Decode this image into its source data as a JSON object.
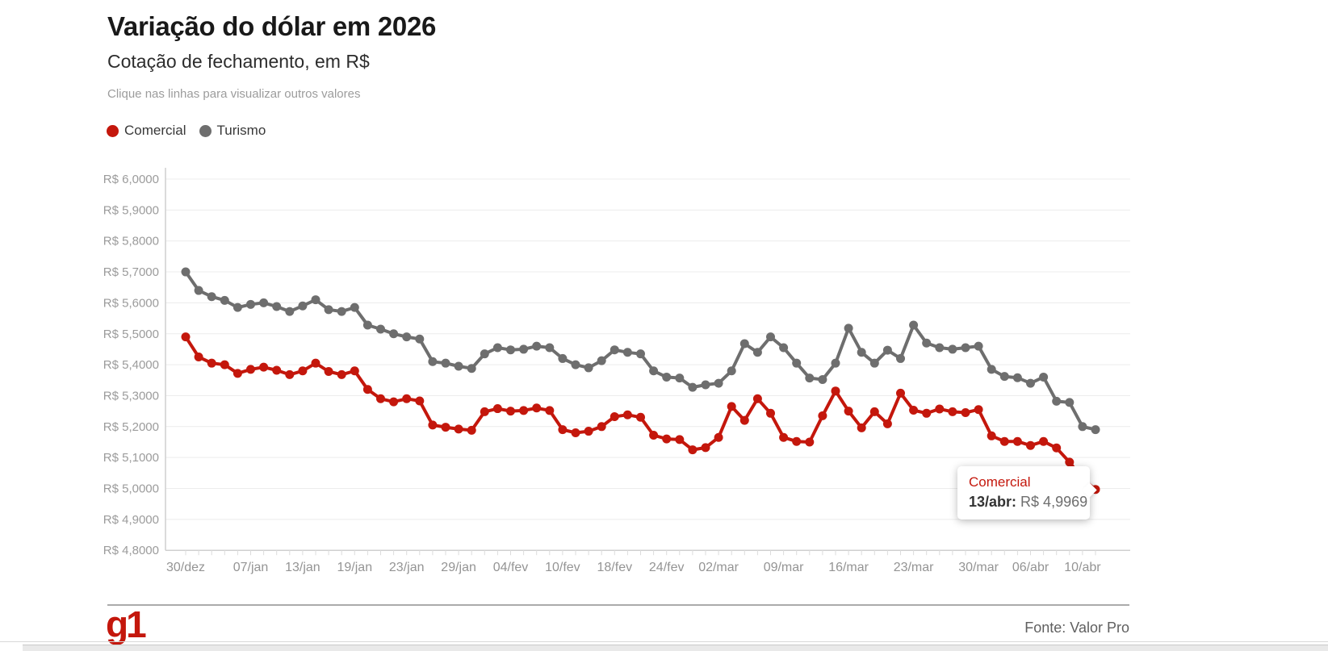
{
  "header": {
    "title": "Variação do dólar em 2026",
    "subtitle": "Cotação de fechamento, em R$",
    "hint": "Clique nas linhas para visualizar outros valores"
  },
  "legend": [
    {
      "label": "Comercial",
      "color": "#c4170c"
    },
    {
      "label": "Turismo",
      "color": "#6e6e6e"
    }
  ],
  "chart_data": {
    "type": "line",
    "title": "Variação do dólar em 2026",
    "xlabel": "",
    "ylabel": "Cotação de fechamento, em R$",
    "ylim": [
      4.8,
      6.0
    ],
    "grid": "horizontal",
    "legend_position": "top-left",
    "y_ticks": [
      6.0,
      5.9,
      5.8,
      5.7,
      5.6,
      5.5,
      5.4,
      5.3,
      5.2,
      5.1,
      5.0,
      4.9,
      4.8
    ],
    "y_tick_labels": [
      "R$ 6,0000",
      "R$ 5,9000",
      "R$ 5,8000",
      "R$ 5,7000",
      "R$ 5,6000",
      "R$ 5,5000",
      "R$ 5,4000",
      "R$ 5,3000",
      "R$ 5,2000",
      "R$ 5,1000",
      "R$ 5,0000",
      "R$ 4,9000",
      "R$ 4,8000"
    ],
    "x": [
      "30/dez",
      "31/dez",
      "02/jan",
      "05/jan",
      "06/jan",
      "07/jan",
      "08/jan",
      "09/jan",
      "12/jan",
      "13/jan",
      "14/jan",
      "15/jan",
      "16/jan",
      "19/jan",
      "20/jan",
      "21/jan",
      "22/jan",
      "23/jan",
      "26/jan",
      "27/jan",
      "28/jan",
      "29/jan",
      "30/jan",
      "02/fev",
      "03/fev",
      "04/fev",
      "05/fev",
      "06/fev",
      "09/fev",
      "10/fev",
      "11/fev",
      "12/fev",
      "13/fev",
      "18/fev",
      "19/fev",
      "20/fev",
      "23/fev",
      "24/fev",
      "25/fev",
      "26/fev",
      "27/fev",
      "02/mar",
      "03/mar",
      "04/mar",
      "05/mar",
      "06/mar",
      "09/mar",
      "10/mar",
      "11/mar",
      "12/mar",
      "13/mar",
      "16/mar",
      "17/mar",
      "18/mar",
      "19/mar",
      "20/mar",
      "23/mar",
      "24/mar",
      "25/mar",
      "26/mar",
      "27/mar",
      "30/mar",
      "31/mar",
      "01/abr",
      "02/abr",
      "06/abr",
      "07/abr",
      "08/abr",
      "09/abr",
      "10/abr",
      "13/abr"
    ],
    "x_tick_indices": [
      0,
      5,
      9,
      13,
      17,
      21,
      25,
      29,
      33,
      37,
      41,
      46,
      51,
      56,
      61,
      65,
      69
    ],
    "x_tick_labels": [
      "30/dez",
      "07/jan",
      "13/jan",
      "19/jan",
      "23/jan",
      "29/jan",
      "04/fev",
      "10/fev",
      "18/fev",
      "24/fev",
      "02/mar",
      "09/mar",
      "16/mar",
      "23/mar",
      "30/mar",
      "06/abr",
      "10/abr"
    ],
    "series": [
      {
        "name": "Comercial",
        "color": "#c4170c",
        "values": [
          5.49,
          5.425,
          5.405,
          5.4,
          5.372,
          5.385,
          5.392,
          5.382,
          5.368,
          5.38,
          5.405,
          5.378,
          5.368,
          5.38,
          5.32,
          5.29,
          5.28,
          5.29,
          5.283,
          5.205,
          5.198,
          5.192,
          5.188,
          5.248,
          5.258,
          5.25,
          5.252,
          5.26,
          5.252,
          5.19,
          5.18,
          5.185,
          5.2,
          5.232,
          5.238,
          5.23,
          5.172,
          5.16,
          5.158,
          5.125,
          5.132,
          5.165,
          5.265,
          5.22,
          5.29,
          5.243,
          5.165,
          5.152,
          5.15,
          5.235,
          5.315,
          5.25,
          5.196,
          5.248,
          5.209,
          5.308,
          5.253,
          5.243,
          5.257,
          5.248,
          5.245,
          5.255,
          5.17,
          5.152,
          5.152,
          5.139,
          5.152,
          5.131,
          5.085,
          5.03,
          4.9969
        ]
      },
      {
        "name": "Turismo",
        "color": "#6e6e6e",
        "values": [
          5.7,
          5.64,
          5.62,
          5.608,
          5.585,
          5.595,
          5.6,
          5.588,
          5.572,
          5.59,
          5.61,
          5.578,
          5.572,
          5.585,
          5.528,
          5.515,
          5.5,
          5.49,
          5.483,
          5.41,
          5.405,
          5.395,
          5.388,
          5.435,
          5.455,
          5.448,
          5.45,
          5.46,
          5.455,
          5.42,
          5.4,
          5.39,
          5.413,
          5.448,
          5.44,
          5.435,
          5.38,
          5.36,
          5.357,
          5.327,
          5.335,
          5.34,
          5.38,
          5.468,
          5.44,
          5.49,
          5.455,
          5.405,
          5.357,
          5.352,
          5.405,
          5.518,
          5.44,
          5.405,
          5.447,
          5.42,
          5.528,
          5.47,
          5.455,
          5.45,
          5.455,
          5.46,
          5.385,
          5.362,
          5.358,
          5.34,
          5.36,
          5.282,
          5.278,
          5.2,
          5.19
        ]
      }
    ]
  },
  "tooltip": {
    "series": "Comercial",
    "date_label": "13/abr:",
    "value_label": "R$ 4,9969"
  },
  "footer": {
    "logo": "g1",
    "source": "Fonte: Valor Pro"
  }
}
